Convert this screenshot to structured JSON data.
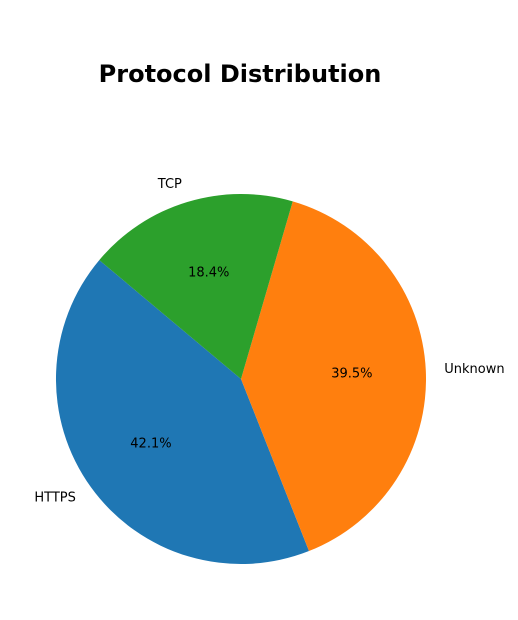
{
  "chart_data": {
    "type": "pie",
    "title": "Protocol Distribution",
    "start_angle_deg": 140,
    "direction": "counterclockwise",
    "slices": [
      {
        "label": "HTTPS",
        "value": 42.1,
        "pct_label": "42.1%",
        "color": "#1f77b4"
      },
      {
        "label": "Unknown",
        "value": 39.5,
        "pct_label": "39.5%",
        "color": "#ff7f0e"
      },
      {
        "label": "TCP",
        "value": 18.4,
        "pct_label": "18.4%",
        "color": "#2ca02c"
      }
    ]
  }
}
